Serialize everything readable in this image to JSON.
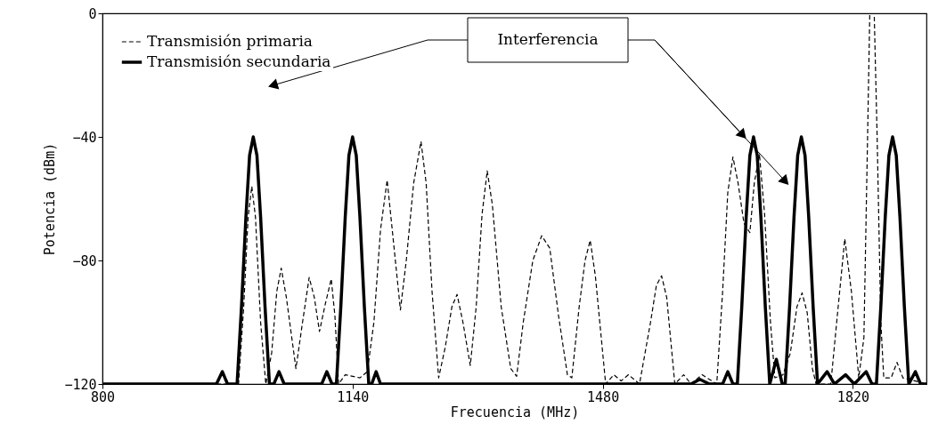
{
  "chart_data": {
    "type": "line",
    "xlabel": "Frecuencia (MHz)",
    "ylabel": "Potencia (dBm)",
    "xlim": [
      800,
      1920
    ],
    "xticks": [
      800,
      1140,
      1480,
      1820
    ],
    "ylim": [
      -120,
      0
    ],
    "yticks": [
      -120,
      -80,
      -40,
      0
    ],
    "grid": false,
    "legend": "top left",
    "annotations": [
      "Interferencia"
    ],
    "series": [
      {
        "name": "Transmisión primaria",
        "color": "#000000",
        "line_style": "dashed",
        "x": [
          800,
          985,
          992,
          998,
          1003,
          1008,
          1015,
          1022,
          1030,
          1037,
          1043,
          1050,
          1063,
          1072,
          1081,
          1088,
          1095,
          1103,
          1111,
          1116,
          1121,
          1130,
          1150,
          1160,
          1169,
          1178,
          1187,
          1196,
          1205,
          1213,
          1223,
          1233,
          1240,
          1248,
          1257,
          1266,
          1275,
          1282,
          1290,
          1300,
          1308,
          1316,
          1323,
          1330,
          1342,
          1355,
          1363,
          1372,
          1385,
          1397,
          1408,
          1420,
          1432,
          1438,
          1448,
          1456,
          1463,
          1470,
          1478,
          1484,
          1495,
          1505,
          1515,
          1530,
          1545,
          1553,
          1560,
          1567,
          1578,
          1590,
          1600,
          1615,
          1635,
          1643,
          1650,
          1657,
          1664,
          1672,
          1680,
          1686,
          1693,
          1700,
          1708,
          1714,
          1725,
          1735,
          1744,
          1751,
          1758,
          1765,
          1770,
          1790,
          1798,
          1809,
          1818,
          1828,
          1835,
          1840,
          1843,
          1849,
          1853,
          1858,
          1862,
          1872,
          1880,
          1888,
          1920
        ],
        "values": [
          -120,
          -120,
          -95,
          -66,
          -56,
          -66,
          -100,
          -120,
          -110,
          -90,
          -82.5,
          -92,
          -115,
          -100,
          -85.5,
          -92,
          -103,
          -94,
          -86,
          -98,
          -120,
          -117,
          -118,
          -116,
          -100,
          -70,
          -54,
          -75,
          -96,
          -80,
          -55,
          -41.5,
          -55,
          -90,
          -118,
          -108,
          -95,
          -91,
          -100,
          -114,
          -95,
          -65,
          -51,
          -62,
          -95,
          -115,
          -117.5,
          -100,
          -80,
          -72,
          -76,
          -98,
          -117,
          -118,
          -95,
          -80,
          -73.5,
          -85,
          -105,
          -120,
          -117,
          -119,
          -117,
          -120,
          -100,
          -88,
          -85,
          -92,
          -120,
          -117,
          -120,
          -117,
          -120,
          -90,
          -58,
          -46.5,
          -55,
          -68,
          -71,
          -55,
          -45.5,
          -65,
          -100,
          -118,
          -117,
          -110,
          -95,
          -90.5,
          -97,
          -115,
          -120,
          -120,
          -100,
          -73,
          -90,
          -118,
          -105,
          -40,
          0,
          0,
          -40,
          -100,
          -118,
          -118,
          -113,
          -118,
          -120
        ]
      },
      {
        "name": "Transmisión secundaria",
        "color": "#000000",
        "line_style": "solid",
        "x": [
          800,
          955,
          963,
          970,
          983,
          989,
          995,
          1000,
          1005,
          1010,
          1015,
          1021,
          1027,
          1033,
          1040,
          1047,
          1098,
          1105,
          1112,
          1118,
          1124,
          1130,
          1135,
          1140,
          1145,
          1150,
          1156,
          1162,
          1166,
          1172,
          1178,
          1600,
          1612,
          1625,
          1643,
          1650,
          1657,
          1663,
          1669,
          1675,
          1680,
          1685,
          1690,
          1695,
          1701,
          1707,
          1716,
          1724,
          1728,
          1734,
          1740,
          1745,
          1750,
          1755,
          1760,
          1766,
          1772,
          1785,
          1795,
          1810,
          1822,
          1838,
          1846,
          1852,
          1858,
          1864,
          1869,
          1874,
          1879,
          1884,
          1890,
          1896,
          1905,
          1912,
          1920
        ],
        "values": [
          -120,
          -120,
          -116,
          -120,
          -120,
          -95,
          -66,
          -46,
          -40,
          -46,
          -66,
          -95,
          -120,
          -120,
          -116,
          -120,
          -120,
          -116,
          -120,
          -120,
          -95,
          -66,
          -46,
          -40,
          -46,
          -66,
          -95,
          -120,
          -120,
          -116,
          -120,
          -120,
          -118.5,
          -120,
          -120,
          -116,
          -120,
          -120,
          -95,
          -66,
          -46,
          -40,
          -46,
          -66,
          -95,
          -120,
          -112,
          -120,
          -120,
          -95,
          -66,
          -46,
          -40,
          -46,
          -66,
          -95,
          -120,
          -116,
          -120,
          -117,
          -120,
          -116,
          -120,
          -120,
          -95,
          -66,
          -46,
          -40,
          -46,
          -66,
          -95,
          -120,
          -116,
          -120,
          -120
        ]
      }
    ]
  }
}
